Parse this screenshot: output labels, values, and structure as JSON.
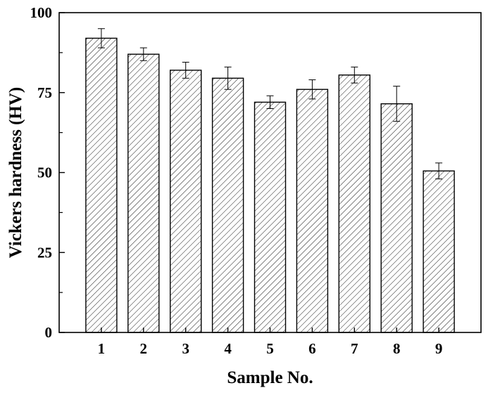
{
  "chart_data": {
    "type": "bar",
    "xlabel": "Sample No.",
    "ylabel": "Vickers hardness (HV)",
    "categories": [
      "1",
      "2",
      "3",
      "4",
      "5",
      "6",
      "7",
      "8",
      "9"
    ],
    "values": [
      92,
      87,
      82,
      79.5,
      72,
      76,
      80.5,
      71.5,
      50.5
    ],
    "errors": [
      3,
      2,
      2.5,
      3.5,
      2,
      3,
      2.5,
      5.5,
      2.5
    ],
    "ylim": [
      0,
      100
    ],
    "yticks": [
      0,
      25,
      50,
      75,
      100
    ],
    "ytick_labels": [
      "0",
      "25",
      "50",
      "75",
      "100"
    ],
    "bar_fill": "hatched",
    "bar_color": "#000000",
    "grid": false,
    "legend": "none"
  }
}
